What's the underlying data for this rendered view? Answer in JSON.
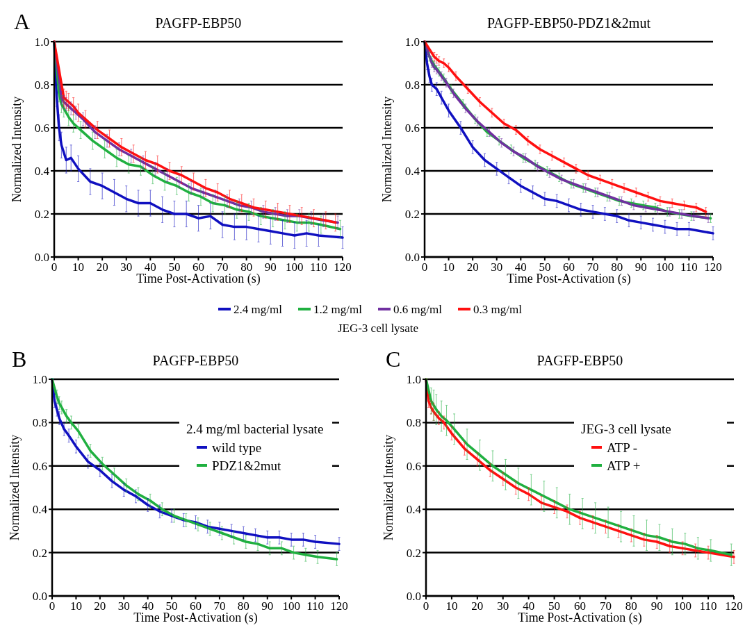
{
  "chart_data": [
    {
      "type": "line",
      "title": "PAGFP-EBP50",
      "xlabel": "Time Post-Activation (s)",
      "ylabel": "Normalized Intensity",
      "annotations": [
        "A"
      ],
      "legend": "bottom",
      "legend_title": "JEG-3 cell lysate",
      "grid": "y",
      "marker": "none",
      "line_style": "solid",
      "xlim": [
        0,
        120
      ],
      "xticks": [
        0,
        10,
        20,
        30,
        40,
        50,
        60,
        70,
        80,
        90,
        100,
        110,
        120
      ],
      "ylim": [
        0,
        1
      ],
      "yticks": [
        {
          "value": 0,
          "label": "0.0"
        },
        {
          "value": 0.2,
          "label": "0.2"
        },
        {
          "value": 0.4,
          "label": "0.4"
        },
        {
          "value": 0.6,
          "label": "0.6"
        },
        {
          "value": 0.8,
          "label": "0.8"
        },
        {
          "value": 1,
          "label": "1.0"
        }
      ],
      "series": [
        {
          "name": "2.4 mg/ml",
          "color": "#1010c0",
          "x": [
            0,
            1,
            2,
            3,
            5,
            7,
            10,
            15,
            20,
            25,
            30,
            35,
            40,
            45,
            50,
            55,
            60,
            65,
            70,
            75,
            80,
            85,
            90,
            95,
            100,
            105,
            110,
            120
          ],
          "values": [
            1.0,
            0.75,
            0.6,
            0.52,
            0.45,
            0.46,
            0.41,
            0.35,
            0.33,
            0.3,
            0.27,
            0.25,
            0.25,
            0.22,
            0.2,
            0.2,
            0.18,
            0.19,
            0.15,
            0.14,
            0.14,
            0.13,
            0.12,
            0.11,
            0.1,
            0.11,
            0.1,
            0.09
          ],
          "errors": [
            0,
            0.05,
            0.06,
            0.06,
            0.06,
            0.06,
            0.06,
            0.06,
            0.06,
            0.06,
            0.06,
            0.06,
            0.06,
            0.06,
            0.06,
            0.06,
            0.06,
            0.06,
            0.06,
            0.06,
            0.06,
            0.06,
            0.06,
            0.06,
            0.06,
            0.06,
            0.05,
            0.05
          ]
        },
        {
          "name": "1.2 mg/ml",
          "color": "#20b040",
          "x": [
            0,
            2,
            3,
            4,
            6,
            8,
            11,
            16,
            21,
            26,
            31,
            36,
            41,
            46,
            51,
            56,
            61,
            66,
            71,
            76,
            81,
            86,
            91,
            96,
            101,
            106,
            111,
            119
          ],
          "values": [
            1.0,
            0.76,
            0.71,
            0.69,
            0.65,
            0.62,
            0.59,
            0.54,
            0.5,
            0.46,
            0.43,
            0.42,
            0.38,
            0.35,
            0.33,
            0.3,
            0.28,
            0.25,
            0.24,
            0.22,
            0.21,
            0.19,
            0.18,
            0.17,
            0.16,
            0.16,
            0.15,
            0.13
          ],
          "errors": [
            0,
            0.04,
            0.04,
            0.04,
            0.04,
            0.04,
            0.04,
            0.04,
            0.04,
            0.04,
            0.04,
            0.04,
            0.04,
            0.04,
            0.04,
            0.04,
            0.04,
            0.04,
            0.04,
            0.04,
            0.04,
            0.04,
            0.04,
            0.04,
            0.04,
            0.04,
            0.04,
            0.04
          ]
        },
        {
          "name": "0.6 mg/ml",
          "color": "#7030a0",
          "x": [
            0,
            3,
            4,
            5,
            7,
            9,
            12,
            17,
            22,
            27,
            32,
            37,
            42,
            47,
            52,
            57,
            62,
            67,
            72,
            77,
            82,
            87,
            92,
            97,
            102,
            107,
            112,
            118
          ],
          "values": [
            1.0,
            0.74,
            0.72,
            0.71,
            0.69,
            0.67,
            0.64,
            0.58,
            0.54,
            0.5,
            0.47,
            0.44,
            0.41,
            0.38,
            0.35,
            0.32,
            0.3,
            0.28,
            0.26,
            0.24,
            0.23,
            0.21,
            0.2,
            0.19,
            0.19,
            0.18,
            0.17,
            0.16
          ],
          "errors": [
            0,
            0.03,
            0.03,
            0.03,
            0.03,
            0.03,
            0.03,
            0.03,
            0.03,
            0.03,
            0.03,
            0.03,
            0.03,
            0.03,
            0.03,
            0.03,
            0.02,
            0.03,
            0.03,
            0.03,
            0.03,
            0.03,
            0.03,
            0.03,
            0.03,
            0.03,
            0.03,
            0.03
          ]
        },
        {
          "name": "0.3 mg/ml",
          "color": "#ff1010",
          "x": [
            0,
            4,
            5,
            6,
            8,
            10,
            13,
            18,
            23,
            28,
            33,
            38,
            43,
            48,
            53,
            58,
            63,
            68,
            73,
            78,
            83,
            88,
            93,
            98,
            103,
            108,
            113,
            117
          ],
          "values": [
            1.0,
            0.74,
            0.73,
            0.72,
            0.7,
            0.67,
            0.64,
            0.59,
            0.55,
            0.51,
            0.48,
            0.45,
            0.43,
            0.4,
            0.38,
            0.35,
            0.32,
            0.3,
            0.27,
            0.25,
            0.23,
            0.22,
            0.21,
            0.2,
            0.19,
            0.18,
            0.17,
            0.16
          ],
          "errors": [
            0,
            0.04,
            0.04,
            0.04,
            0.04,
            0.04,
            0.04,
            0.04,
            0.04,
            0.04,
            0.04,
            0.04,
            0.04,
            0.04,
            0.04,
            0.04,
            0.04,
            0.04,
            0.04,
            0.04,
            0.04,
            0.04,
            0.04,
            0.04,
            0.04,
            0.04,
            0.04,
            0.04
          ]
        }
      ]
    },
    {
      "type": "line",
      "title": "PAGFP-EBP50-PDZ1&2mut",
      "xlabel": "Time Post-Activation (s)",
      "ylabel": "Normalized Intensity",
      "grid": "y",
      "marker": "none",
      "line_style": "solid",
      "xlim": [
        0,
        120
      ],
      "xticks": [
        0,
        10,
        20,
        30,
        40,
        50,
        60,
        70,
        80,
        90,
        100,
        110,
        120
      ],
      "ylim": [
        0,
        1
      ],
      "yticks": [
        {
          "value": 0,
          "label": "0.0"
        },
        {
          "value": 0.2,
          "label": "0.2"
        },
        {
          "value": 0.4,
          "label": "0.4"
        },
        {
          "value": 0.6,
          "label": "0.6"
        },
        {
          "value": 0.8,
          "label": "0.8"
        },
        {
          "value": 1,
          "label": "1.0"
        }
      ],
      "series": [
        {
          "color": "#1010c0",
          "x": [
            0,
            1,
            2,
            3,
            5,
            7,
            10,
            15,
            20,
            25,
            30,
            35,
            40,
            45,
            50,
            55,
            60,
            65,
            70,
            75,
            80,
            85,
            90,
            95,
            100,
            105,
            110,
            120
          ],
          "values": [
            1.0,
            0.9,
            0.84,
            0.8,
            0.78,
            0.74,
            0.68,
            0.6,
            0.51,
            0.45,
            0.41,
            0.37,
            0.33,
            0.3,
            0.27,
            0.26,
            0.24,
            0.22,
            0.21,
            0.2,
            0.19,
            0.17,
            0.16,
            0.15,
            0.14,
            0.13,
            0.13,
            0.11
          ],
          "errors": [
            0,
            0.03,
            0.03,
            0.03,
            0.03,
            0.03,
            0.03,
            0.03,
            0.03,
            0.03,
            0.03,
            0.03,
            0.03,
            0.03,
            0.03,
            0.03,
            0.03,
            0.03,
            0.03,
            0.03,
            0.03,
            0.03,
            0.03,
            0.03,
            0.03,
            0.03,
            0.03,
            0.03
          ]
        },
        {
          "color": "#20b040",
          "x": [
            0,
            2,
            3,
            4,
            6,
            8,
            11,
            16,
            21,
            26,
            31,
            36,
            41,
            46,
            51,
            56,
            61,
            66,
            71,
            76,
            81,
            86,
            91,
            96,
            101,
            106,
            111,
            119
          ],
          "values": [
            1.0,
            0.93,
            0.91,
            0.89,
            0.86,
            0.83,
            0.78,
            0.71,
            0.64,
            0.58,
            0.54,
            0.5,
            0.46,
            0.43,
            0.4,
            0.37,
            0.34,
            0.32,
            0.3,
            0.28,
            0.26,
            0.25,
            0.24,
            0.23,
            0.21,
            0.2,
            0.19,
            0.18
          ],
          "errors": [
            0,
            0.02,
            0.02,
            0.02,
            0.02,
            0.02,
            0.02,
            0.02,
            0.02,
            0.02,
            0.02,
            0.02,
            0.02,
            0.02,
            0.02,
            0.02,
            0.02,
            0.02,
            0.02,
            0.02,
            0.02,
            0.02,
            0.02,
            0.02,
            0.02,
            0.02,
            0.02,
            0.02
          ]
        },
        {
          "color": "#7030a0",
          "x": [
            0,
            3,
            4,
            5,
            7,
            9,
            12,
            17,
            22,
            27,
            32,
            37,
            42,
            47,
            52,
            57,
            62,
            67,
            72,
            77,
            82,
            87,
            92,
            97,
            102,
            107,
            112,
            118
          ],
          "values": [
            1.0,
            0.9,
            0.88,
            0.87,
            0.84,
            0.81,
            0.76,
            0.69,
            0.63,
            0.58,
            0.53,
            0.49,
            0.46,
            0.42,
            0.39,
            0.36,
            0.34,
            0.32,
            0.3,
            0.28,
            0.26,
            0.24,
            0.23,
            0.22,
            0.21,
            0.2,
            0.19,
            0.18
          ],
          "errors": [
            0,
            0.02,
            0.02,
            0.02,
            0.02,
            0.02,
            0.02,
            0.02,
            0.02,
            0.02,
            0.02,
            0.02,
            0.02,
            0.02,
            0.02,
            0.02,
            0.02,
            0.02,
            0.02,
            0.02,
            0.02,
            0.02,
            0.02,
            0.02,
            0.02,
            0.02,
            0.02,
            0.02
          ]
        },
        {
          "color": "#ff1010",
          "x": [
            0,
            4,
            5,
            6,
            8,
            10,
            13,
            18,
            23,
            28,
            33,
            38,
            43,
            48,
            53,
            58,
            63,
            68,
            73,
            78,
            83,
            88,
            93,
            98,
            103,
            108,
            113,
            117
          ],
          "values": [
            1.0,
            0.93,
            0.92,
            0.91,
            0.9,
            0.88,
            0.84,
            0.78,
            0.72,
            0.67,
            0.62,
            0.59,
            0.54,
            0.5,
            0.47,
            0.44,
            0.41,
            0.38,
            0.36,
            0.34,
            0.32,
            0.3,
            0.28,
            0.26,
            0.25,
            0.24,
            0.23,
            0.21
          ],
          "errors": [
            0,
            0.02,
            0.02,
            0.02,
            0.02,
            0.02,
            0.02,
            0.02,
            0.02,
            0.02,
            0.02,
            0.02,
            0.02,
            0.02,
            0.02,
            0.02,
            0.02,
            0.02,
            0.02,
            0.02,
            0.02,
            0.02,
            0.02,
            0.02,
            0.02,
            0.02,
            0.02,
            0.02
          ]
        }
      ]
    },
    {
      "type": "line",
      "title": "PAGFP-EBP50",
      "xlabel": "Time Post-Activation (s)",
      "ylabel": "Normalized Intensity",
      "annotations": [
        "B"
      ],
      "legend": "right",
      "legend_title": "2.4 mg/ml bacterial lysate",
      "grid": "y",
      "marker": "none",
      "line_style": "solid",
      "xlim": [
        0,
        120
      ],
      "xticks": [
        0,
        10,
        20,
        30,
        40,
        50,
        60,
        70,
        80,
        90,
        100,
        110,
        120
      ],
      "ylim": [
        0,
        1
      ],
      "yticks": [
        {
          "value": 0,
          "label": "0.0"
        },
        {
          "value": 0.2,
          "label": "0.2"
        },
        {
          "value": 0.4,
          "label": "0.4"
        },
        {
          "value": 0.6,
          "label": "0.6"
        },
        {
          "value": 0.8,
          "label": "0.8"
        },
        {
          "value": 1,
          "label": "1.0"
        }
      ],
      "series": [
        {
          "name": "wild type",
          "color": "#1010c0",
          "x": [
            0,
            1,
            2,
            3,
            5,
            7,
            10,
            15,
            20,
            25,
            30,
            35,
            40,
            45,
            50,
            55,
            60,
            65,
            70,
            75,
            80,
            85,
            90,
            95,
            100,
            105,
            110,
            120
          ],
          "values": [
            1.0,
            0.9,
            0.86,
            0.82,
            0.77,
            0.74,
            0.69,
            0.62,
            0.58,
            0.53,
            0.49,
            0.46,
            0.42,
            0.39,
            0.37,
            0.35,
            0.34,
            0.32,
            0.31,
            0.3,
            0.29,
            0.28,
            0.27,
            0.27,
            0.26,
            0.26,
            0.25,
            0.24
          ],
          "errors": [
            0,
            0.03,
            0.03,
            0.03,
            0.03,
            0.03,
            0.03,
            0.03,
            0.03,
            0.03,
            0.03,
            0.03,
            0.03,
            0.03,
            0.03,
            0.03,
            0.03,
            0.03,
            0.03,
            0.03,
            0.03,
            0.03,
            0.03,
            0.03,
            0.03,
            0.03,
            0.03,
            0.03
          ]
        },
        {
          "name": "PDZ1&2mut",
          "color": "#20b040",
          "x": [
            0,
            2,
            3,
            4,
            6,
            8,
            11,
            16,
            21,
            26,
            31,
            36,
            41,
            46,
            51,
            56,
            61,
            66,
            71,
            76,
            81,
            86,
            91,
            96,
            101,
            106,
            111,
            119
          ],
          "values": [
            1.0,
            0.92,
            0.89,
            0.87,
            0.83,
            0.8,
            0.76,
            0.67,
            0.61,
            0.56,
            0.51,
            0.47,
            0.44,
            0.4,
            0.37,
            0.35,
            0.33,
            0.31,
            0.29,
            0.27,
            0.25,
            0.24,
            0.22,
            0.22,
            0.2,
            0.19,
            0.18,
            0.17
          ],
          "errors": [
            0,
            0.03,
            0.03,
            0.03,
            0.03,
            0.03,
            0.03,
            0.03,
            0.03,
            0.03,
            0.03,
            0.03,
            0.03,
            0.03,
            0.03,
            0.03,
            0.03,
            0.03,
            0.03,
            0.03,
            0.03,
            0.03,
            0.03,
            0.03,
            0.03,
            0.03,
            0.03,
            0.03
          ]
        }
      ]
    },
    {
      "type": "line",
      "title": "PAGFP-EBP50",
      "xlabel": "Time Post-Activation (s)",
      "ylabel": "Normalized Intensity",
      "annotations": [
        "C"
      ],
      "legend": "right",
      "legend_title": "JEG-3 cell lysate",
      "grid": "y",
      "marker": "none",
      "line_style": "solid",
      "xlim": [
        0,
        120
      ],
      "xticks": [
        0,
        10,
        20,
        30,
        40,
        50,
        60,
        70,
        80,
        90,
        100,
        110,
        120
      ],
      "ylim": [
        0,
        1
      ],
      "yticks": [
        {
          "value": 0,
          "label": "0.0"
        },
        {
          "value": 0.2,
          "label": "0.2"
        },
        {
          "value": 0.4,
          "label": "0.4"
        },
        {
          "value": 0.6,
          "label": "0.6"
        },
        {
          "value": 0.8,
          "label": "0.8"
        },
        {
          "value": 1,
          "label": "1.0"
        }
      ],
      "series": [
        {
          "name": "ATP -",
          "color": "#ff1010",
          "x": [
            0,
            1,
            2,
            3,
            5,
            7,
            10,
            15,
            20,
            25,
            30,
            35,
            40,
            45,
            50,
            55,
            60,
            65,
            70,
            75,
            80,
            85,
            90,
            95,
            100,
            105,
            110,
            120
          ],
          "values": [
            1.0,
            0.9,
            0.87,
            0.85,
            0.82,
            0.8,
            0.75,
            0.68,
            0.63,
            0.58,
            0.54,
            0.5,
            0.47,
            0.43,
            0.41,
            0.39,
            0.36,
            0.34,
            0.32,
            0.3,
            0.28,
            0.26,
            0.25,
            0.23,
            0.22,
            0.21,
            0.2,
            0.18
          ],
          "errors": [
            0,
            0.03,
            0.03,
            0.04,
            0.03,
            0.03,
            0.03,
            0.03,
            0.03,
            0.03,
            0.03,
            0.03,
            0.03,
            0.03,
            0.03,
            0.03,
            0.03,
            0.03,
            0.03,
            0.03,
            0.03,
            0.03,
            0.03,
            0.03,
            0.03,
            0.03,
            0.03,
            0.03
          ]
        },
        {
          "name": "ATP +",
          "color": "#20b040",
          "x": [
            0,
            2,
            3,
            4,
            6,
            8,
            11,
            16,
            21,
            26,
            31,
            36,
            41,
            46,
            51,
            56,
            61,
            66,
            71,
            76,
            81,
            86,
            91,
            96,
            101,
            106,
            111,
            119
          ],
          "values": [
            1.0,
            0.9,
            0.88,
            0.86,
            0.83,
            0.81,
            0.77,
            0.7,
            0.65,
            0.6,
            0.56,
            0.52,
            0.49,
            0.46,
            0.43,
            0.4,
            0.38,
            0.36,
            0.34,
            0.32,
            0.3,
            0.28,
            0.27,
            0.25,
            0.24,
            0.22,
            0.21,
            0.19
          ],
          "errors": [
            0,
            0.06,
            0.07,
            0.07,
            0.07,
            0.07,
            0.07,
            0.07,
            0.07,
            0.07,
            0.07,
            0.07,
            0.07,
            0.07,
            0.07,
            0.07,
            0.07,
            0.07,
            0.07,
            0.07,
            0.07,
            0.07,
            0.06,
            0.06,
            0.05,
            0.05,
            0.05,
            0.05
          ]
        }
      ]
    }
  ]
}
